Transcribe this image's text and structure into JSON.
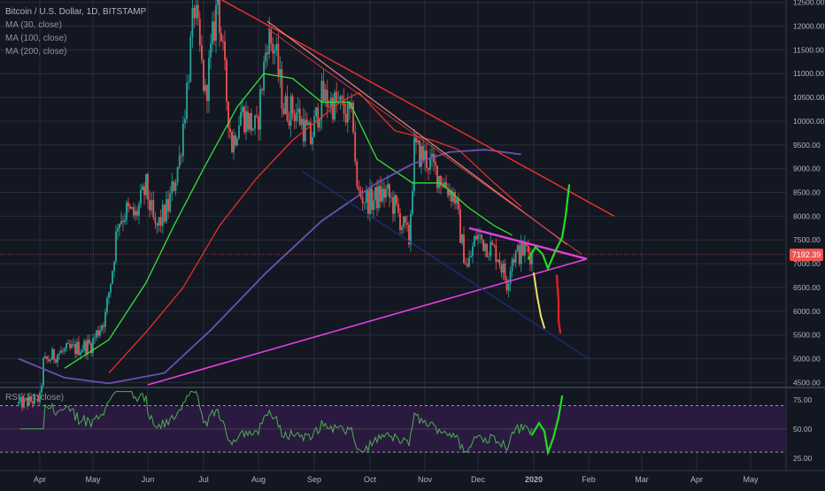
{
  "legend": {
    "title": "Bitcoin / U.S. Dollar, 1D, BITSTAMP",
    "ma30": "MA (30, close)",
    "ma100": "MA (100, close)",
    "ma200": "MA (200, close)",
    "rsi": "RSI (14, close)"
  },
  "last_price_label": "7192.39",
  "colors": {
    "background": "#131722",
    "grid": "#2a2e39",
    "up_candle": "#26a69a",
    "down_candle": "#ef5350",
    "ma30": "#34e034",
    "ma100": "#e8302a",
    "ma200": "#6a52b0",
    "trend_red": "#e8302a",
    "trend_magenta": "#e040e0",
    "trend_navy": "#1f2d6e",
    "rsi_line": "#4caf50",
    "rsi_band": "#2a1a40",
    "projection_green": "#22dd22",
    "projection_yellow": "#f0e070",
    "projection_red": "#e02020"
  },
  "chart_data": [
    {
      "type": "candlestick",
      "title": "Bitcoin / U.S. Dollar, 1D, BITSTAMP",
      "x_ticks": [
        "Apr",
        "May",
        "Jun",
        "Jul",
        "Aug",
        "Sep",
        "Oct",
        "Nov",
        "Dec",
        "2020",
        "Feb",
        "Mar",
        "Apr",
        "May"
      ],
      "y_ticks": [
        4500,
        5000,
        5500,
        6000,
        6500,
        7000,
        7500,
        8000,
        8500,
        9000,
        9500,
        10000,
        10500,
        11000,
        11500,
        12000,
        12500
      ],
      "y_tick_labels": [
        "4500.00",
        "5000.00",
        "5500.00",
        "6000.00",
        "6500.00",
        "7000.00",
        "7500.00",
        "8000.00",
        "8500.00",
        "9000.00",
        "9500.00",
        "10000.00",
        "10500.00",
        "11000.00",
        "11500.00",
        "12000.00",
        "12500.00"
      ],
      "ylim": [
        4450,
        12550
      ],
      "last_price": 7192.39,
      "price_path": [
        [
          "2019-03-20",
          4050
        ],
        [
          "2019-04-01",
          4150
        ],
        [
          "2019-04-03",
          4900
        ],
        [
          "2019-04-10",
          5100
        ],
        [
          "2019-04-20",
          5200
        ],
        [
          "2019-04-30",
          5300
        ],
        [
          "2019-05-08",
          5900
        ],
        [
          "2019-05-12",
          6900
        ],
        [
          "2019-05-15",
          7900
        ],
        [
          "2019-05-20",
          8100
        ],
        [
          "2019-05-25",
          8000
        ],
        [
          "2019-05-31",
          8600
        ],
        [
          "2019-06-05",
          7700
        ],
        [
          "2019-06-12",
          8200
        ],
        [
          "2019-06-18",
          9200
        ],
        [
          "2019-06-22",
          10700
        ],
        [
          "2019-06-26",
          12400
        ],
        [
          "2019-07-02",
          10500
        ],
        [
          "2019-07-09",
          12600
        ],
        [
          "2019-07-14",
          10500
        ],
        [
          "2019-07-17",
          9500
        ],
        [
          "2019-07-22",
          10200
        ],
        [
          "2019-07-31",
          9800
        ],
        [
          "2019-08-06",
          11800
        ],
        [
          "2019-08-10",
          11500
        ],
        [
          "2019-08-15",
          10300
        ],
        [
          "2019-08-22",
          10200
        ],
        [
          "2019-08-30",
          9600
        ],
        [
          "2019-09-05",
          10500
        ],
        [
          "2019-09-15",
          10300
        ],
        [
          "2019-09-22",
          10000
        ],
        [
          "2019-09-24",
          8500
        ],
        [
          "2019-10-01",
          8300
        ],
        [
          "2019-10-10",
          8500
        ],
        [
          "2019-10-15",
          8200
        ],
        [
          "2019-10-23",
          7500
        ],
        [
          "2019-10-26",
          9400
        ],
        [
          "2019-11-02",
          9200
        ],
        [
          "2019-11-10",
          8800
        ],
        [
          "2019-11-18",
          8400
        ],
        [
          "2019-11-22",
          7400
        ],
        [
          "2019-11-25",
          6900
        ],
        [
          "2019-11-30",
          7600
        ],
        [
          "2019-12-06",
          7400
        ],
        [
          "2019-12-12",
          7200
        ],
        [
          "2019-12-17",
          6600
        ],
        [
          "2019-12-20",
          7150
        ],
        [
          "2019-12-28",
          7300
        ],
        [
          "2019-12-31",
          7192
        ]
      ],
      "moving_averages": [
        {
          "name": "MA (30, close)",
          "points": [
            [
              "2019-04-15",
              4800
            ],
            [
              "2019-05-10",
              5400
            ],
            [
              "2019-05-31",
              6600
            ],
            [
              "2019-06-15",
              7800
            ],
            [
              "2019-07-01",
              9000
            ],
            [
              "2019-07-20",
              10300
            ],
            [
              "2019-08-04",
              11000
            ],
            [
              "2019-08-20",
              10900
            ],
            [
              "2019-09-05",
              10400
            ],
            [
              "2019-09-20",
              10400
            ],
            [
              "2019-10-05",
              9200
            ],
            [
              "2019-10-25",
              8700
            ],
            [
              "2019-11-10",
              8700
            ],
            [
              "2019-11-25",
              8200
            ],
            [
              "2019-12-10",
              7800
            ],
            [
              "2019-12-20",
              7600
            ]
          ]
        },
        {
          "name": "MA (100, close)",
          "points": [
            [
              "2019-05-10",
              4700
            ],
            [
              "2019-06-01",
              5600
            ],
            [
              "2019-06-20",
              6500
            ],
            [
              "2019-07-10",
              7800
            ],
            [
              "2019-07-31",
              8800
            ],
            [
              "2019-08-20",
              9600
            ],
            [
              "2019-09-15",
              10400
            ],
            [
              "2019-09-25",
              10600
            ],
            [
              "2019-10-15",
              9800
            ],
            [
              "2019-11-05",
              9600
            ],
            [
              "2019-11-20",
              9400
            ],
            [
              "2019-12-10",
              8700
            ],
            [
              "2019-12-25",
              8200
            ]
          ]
        },
        {
          "name": "MA (200, close)",
          "points": [
            [
              "2019-03-20",
              5000
            ],
            [
              "2019-04-15",
              4600
            ],
            [
              "2019-05-10",
              4480
            ],
            [
              "2019-06-10",
              4700
            ],
            [
              "2019-07-05",
              5600
            ],
            [
              "2019-08-05",
              6800
            ],
            [
              "2019-09-05",
              7900
            ],
            [
              "2019-10-05",
              8700
            ],
            [
              "2019-10-25",
              9100
            ],
            [
              "2019-11-15",
              9350
            ],
            [
              "2019-12-05",
              9400
            ],
            [
              "2019-12-25",
              9300
            ]
          ]
        }
      ]
    },
    {
      "type": "line",
      "title": "RSI (14, close)",
      "y_ticks": [
        25,
        50,
        75
      ],
      "y_tick_labels": [
        "25.00",
        "50.00",
        "75.00"
      ],
      "ylim": [
        18,
        84
      ],
      "bands": [
        30,
        70
      ]
    }
  ]
}
